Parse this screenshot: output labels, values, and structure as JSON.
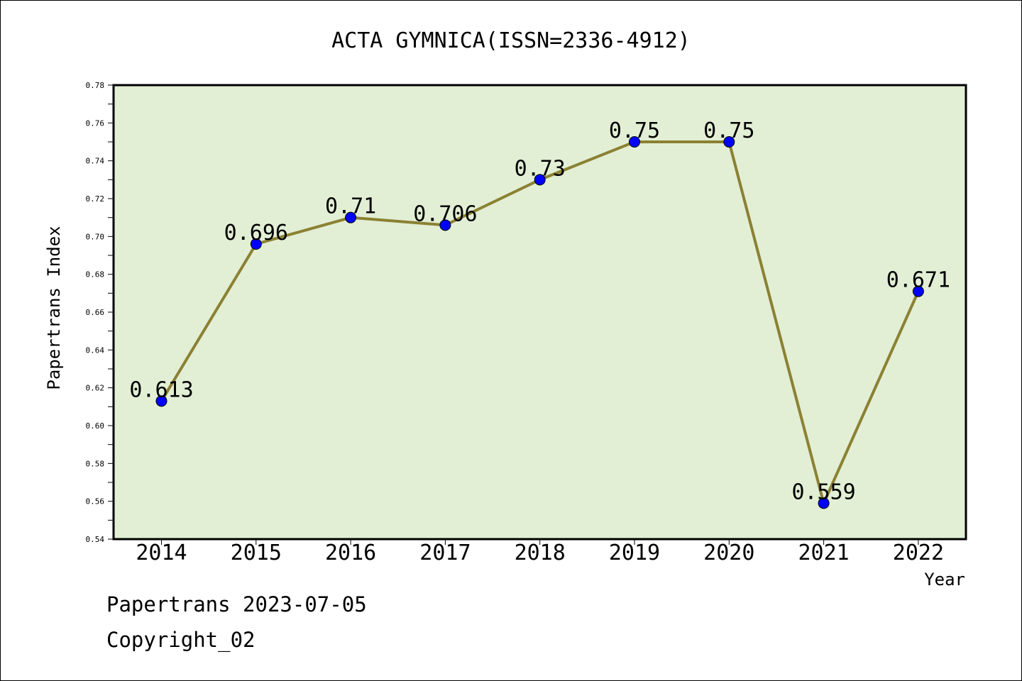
{
  "footer": {
    "line1": "Papertrans 2023-07-05",
    "line2": "Copyright_02"
  },
  "colors": {
    "plot_bg": "#e2efd5",
    "line": "#8b8133",
    "marker": "#0000ff",
    "axis": "#000000"
  },
  "chart_data": {
    "type": "line",
    "title": "ACTA GYMNICA(ISSN=2336-4912)",
    "xlabel": "Year",
    "ylabel": "Papertrans Index",
    "categories": [
      "2014",
      "2015",
      "2016",
      "2017",
      "2018",
      "2019",
      "2020",
      "2021",
      "2022"
    ],
    "series": [
      {
        "values": [
          0.613,
          0.696,
          0.71,
          0.706,
          0.73,
          0.75,
          0.75,
          0.559,
          0.671
        ],
        "data_labels": [
          "0.613",
          "0.696",
          "0.71",
          "0.706",
          "0.73",
          "0.75",
          "0.75",
          "0.559",
          "0.671"
        ]
      }
    ],
    "ylim": [
      0.54,
      0.78
    ],
    "yticks": [
      "0.54",
      "0.56",
      "0.58",
      "0.60",
      "0.62",
      "0.64",
      "0.66",
      "0.68",
      "0.70",
      "0.72",
      "0.74",
      "0.76",
      "0.78"
    ],
    "grid": false,
    "legend": "none"
  }
}
